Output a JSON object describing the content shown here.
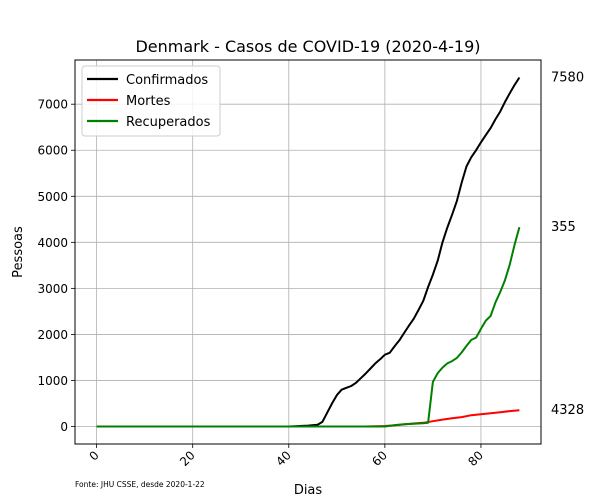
{
  "chart_data": {
    "type": "line",
    "title": "Denmark - Casos de COVID-19 (2020-4-19)",
    "xlabel": "Dias",
    "ylabel": "Pessoas",
    "xlim": [
      -4.5,
      92.5
    ],
    "ylim": [
      -380,
      7960
    ],
    "xticks": [
      0,
      20,
      40,
      60,
      80
    ],
    "yticks": [
      0,
      1000,
      2000,
      3000,
      4000,
      5000,
      6000,
      7000
    ],
    "grid": true,
    "legend_position": "top-left",
    "footnote": "Fonte: JHU CSSE, desde 2020-1-22",
    "end_labels": [
      "7580",
      "4328",
      "355"
    ],
    "series": [
      {
        "name": "Confirmados",
        "color": "#000000",
        "x": [
          0,
          40,
          44,
          46,
          47,
          48,
          49,
          50,
          51,
          52,
          53,
          54,
          55,
          56,
          57,
          58,
          59,
          60,
          61,
          62,
          63,
          64,
          65,
          66,
          67,
          68,
          69,
          70,
          71,
          72,
          73,
          74,
          75,
          76,
          77,
          78,
          79,
          80,
          81,
          82,
          83,
          84,
          85,
          86,
          87,
          88
        ],
        "y": [
          0,
          0,
          20,
          40,
          100,
          300,
          500,
          680,
          800,
          840,
          880,
          950,
          1050,
          1150,
          1260,
          1370,
          1460,
          1560,
          1600,
          1740,
          1870,
          2030,
          2190,
          2340,
          2530,
          2730,
          3030,
          3300,
          3600,
          4000,
          4320,
          4600,
          4900,
          5300,
          5650,
          5850,
          6000,
          6170,
          6330,
          6480,
          6670,
          6840,
          7050,
          7240,
          7420,
          7580
        ]
      },
      {
        "name": "Mortes",
        "color": "#ff0000",
        "x": [
          0,
          56,
          58,
          60,
          62,
          64,
          66,
          68,
          70,
          72,
          74,
          76,
          78,
          80,
          82,
          84,
          86,
          88
        ],
        "y": [
          0,
          0,
          5,
          10,
          25,
          45,
          65,
          80,
          115,
          150,
          180,
          205,
          245,
          265,
          290,
          310,
          335,
          355
        ]
      },
      {
        "name": "Recuperados",
        "color": "#008000",
        "x": [
          0,
          60,
          62,
          64,
          66,
          68,
          69,
          70,
          71,
          72,
          73,
          74,
          75,
          76,
          77,
          78,
          79,
          80,
          81,
          82,
          83,
          84,
          85,
          86,
          87,
          88
        ],
        "y": [
          0,
          0,
          30,
          50,
          60,
          70,
          80,
          970,
          1160,
          1280,
          1370,
          1420,
          1490,
          1610,
          1750,
          1880,
          1930,
          2120,
          2300,
          2400,
          2690,
          2920,
          3180,
          3520,
          3950,
          4328
        ]
      }
    ]
  }
}
